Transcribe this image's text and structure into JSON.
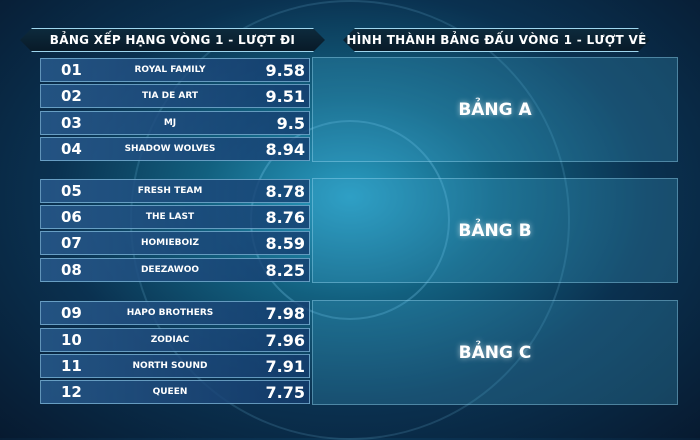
{
  "left_header": "BẢNG XẾP HẠNG VÒNG 1 - LƯỢT ĐI",
  "right_header": "HÌNH THÀNH BẢNG ĐẤU VÒNG 1 - LƯỢT VỀ",
  "rankings": [
    {
      "rank": "01",
      "team": "ROYAL FAMILY",
      "score": "9.58"
    },
    {
      "rank": "02",
      "team": "TIA DE ART",
      "score": "9.51"
    },
    {
      "rank": "03",
      "team": "MJ",
      "score": "9.5"
    },
    {
      "rank": "04",
      "team": "SHADOW WOLVES",
      "score": "8.94"
    },
    {
      "rank": "05",
      "team": "FRESH TEAM",
      "score": "8.78"
    },
    {
      "rank": "06",
      "team": "THE LAST",
      "score": "8.76"
    },
    {
      "rank": "07",
      "team": "HOMIEBOIZ",
      "score": "8.59"
    },
    {
      "rank": "08",
      "team": "DEEZAWOO",
      "score": "8.25"
    },
    {
      "rank": "09",
      "team": "HAPO BROTHERS",
      "score": "7.98"
    },
    {
      "rank": "10",
      "team": "ZODIAC",
      "score": "7.96"
    },
    {
      "rank": "11",
      "team": "NORTH SOUND",
      "score": "7.91"
    },
    {
      "rank": "12",
      "team": "QUEEN",
      "score": "7.75"
    }
  ],
  "groups": [
    "BẢNG A",
    "BẢNG B",
    "BẢNG C"
  ]
}
